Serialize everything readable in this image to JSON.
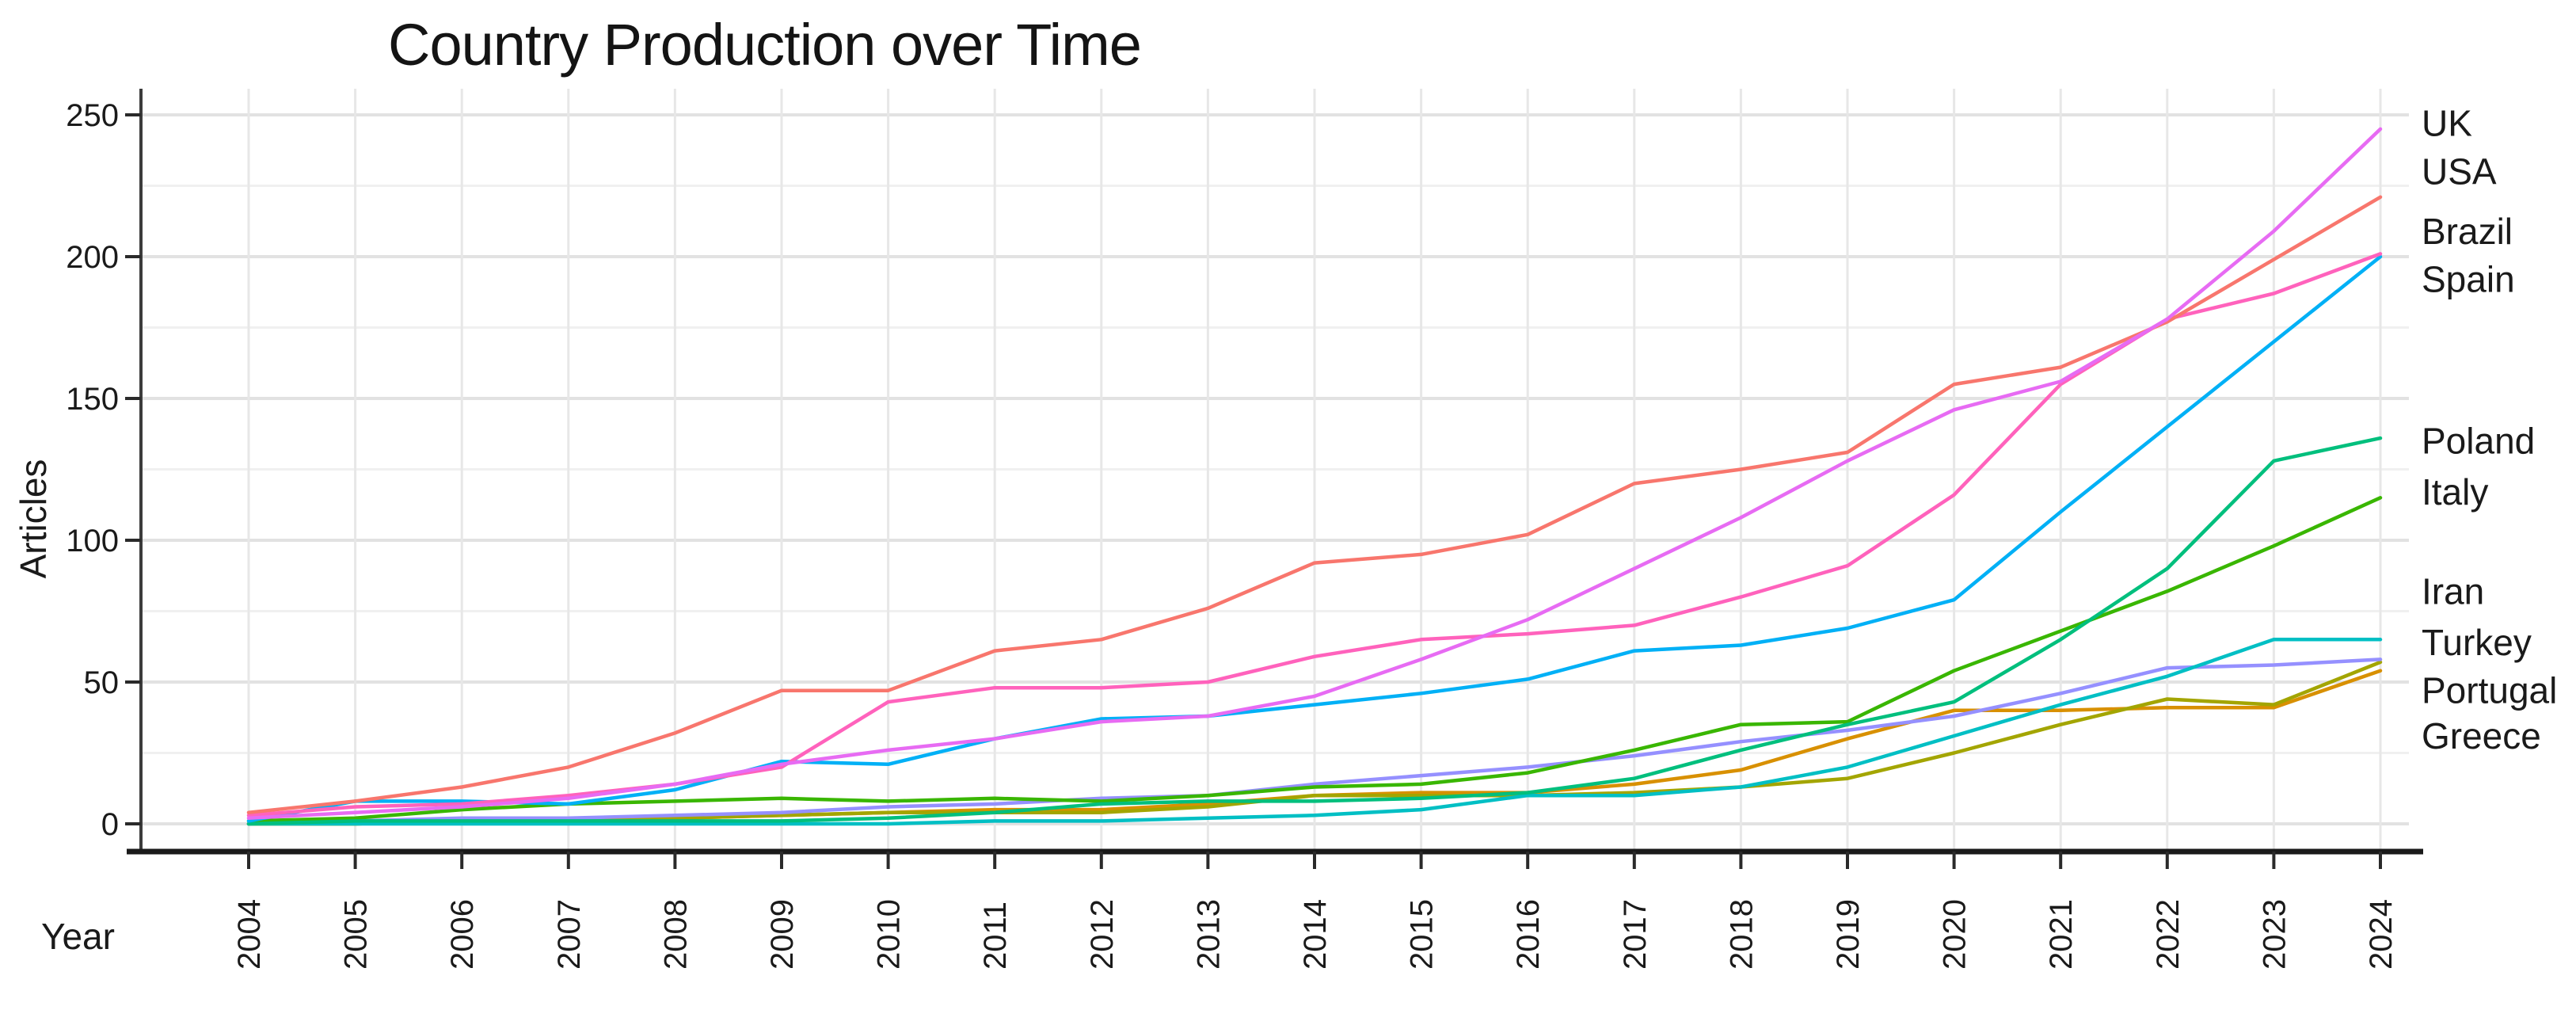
{
  "title": "Country Production over Time",
  "axes": {
    "x_label": "Year",
    "y_label": "Articles"
  },
  "chart_data": {
    "type": "line",
    "title": "Country Production over Time",
    "xlabel": "Year",
    "ylabel": "Articles",
    "x": [
      2004,
      2005,
      2006,
      2007,
      2008,
      2009,
      2010,
      2011,
      2012,
      2013,
      2014,
      2015,
      2016,
      2017,
      2018,
      2019,
      2020,
      2021,
      2022,
      2023,
      2024
    ],
    "ylim": [
      0,
      250
    ],
    "yticks": [
      0,
      50,
      100,
      150,
      200,
      250
    ],
    "grid": "horizontal lines every 25 (major every 50), vertical line each year, light gray on white",
    "legend_position": "direct labels at right edge of plot",
    "series": [
      {
        "name": "UK",
        "color": "#E76BF3",
        "label_y": 247,
        "values": [
          2,
          4,
          6,
          9,
          14,
          21,
          26,
          30,
          36,
          38,
          45,
          58,
          72,
          90,
          108,
          128,
          146,
          156,
          178,
          209,
          245
        ]
      },
      {
        "name": "USA",
        "color": "#F8766D",
        "label_y": 230,
        "values": [
          4,
          8,
          13,
          20,
          32,
          47,
          47,
          61,
          65,
          76,
          92,
          95,
          102,
          120,
          125,
          131,
          155,
          161,
          177,
          199,
          221
        ]
      },
      {
        "name": "Brazil",
        "color": "#FF62BC",
        "label_y": 209,
        "values": [
          3,
          6,
          7,
          10,
          14,
          20,
          43,
          48,
          48,
          50,
          59,
          65,
          67,
          70,
          80,
          91,
          116,
          155,
          178,
          187,
          201
        ]
      },
      {
        "name": "Spain",
        "color": "#00B0F6",
        "label_y": 192,
        "values": [
          1,
          8,
          8,
          7,
          12,
          22,
          21,
          30,
          37,
          38,
          42,
          46,
          51,
          61,
          63,
          69,
          79,
          110,
          140,
          170,
          200
        ]
      },
      {
        "name": "Poland",
        "color": "#00BF7D",
        "label_y": 135,
        "values": [
          0,
          1,
          1,
          1,
          1,
          1,
          2,
          4,
          7,
          8,
          8,
          9,
          11,
          16,
          26,
          35,
          43,
          65,
          90,
          128,
          136
        ]
      },
      {
        "name": "Italy",
        "color": "#39B600",
        "label_y": 117,
        "values": [
          1,
          2,
          5,
          7,
          8,
          9,
          8,
          9,
          8,
          10,
          13,
          14,
          18,
          26,
          35,
          36,
          54,
          68,
          82,
          98,
          115
        ]
      },
      {
        "name": "Iran",
        "color": "#00BFC4",
        "label_y": 82,
        "values": [
          0,
          0,
          0,
          0,
          0,
          0,
          0,
          1,
          1,
          2,
          3,
          5,
          10,
          10,
          13,
          20,
          31,
          42,
          52,
          65,
          65
        ]
      },
      {
        "name": "Turkey",
        "color": "#9590FF",
        "label_y": 64,
        "values": [
          0,
          1,
          2,
          2,
          3,
          4,
          6,
          7,
          9,
          10,
          14,
          17,
          20,
          24,
          29,
          33,
          38,
          46,
          55,
          56,
          58
        ]
      },
      {
        "name": "Portugal",
        "color": "#A3A500",
        "label_y": 47,
        "values": [
          0,
          0,
          1,
          1,
          2,
          3,
          4,
          4,
          4,
          6,
          10,
          10,
          10,
          11,
          13,
          16,
          25,
          35,
          44,
          42,
          57
        ]
      },
      {
        "name": "Greece",
        "color": "#D89000",
        "label_y": 31,
        "values": [
          0,
          0,
          1,
          1,
          2,
          3,
          4,
          5,
          5,
          7,
          10,
          11,
          11,
          14,
          19,
          30,
          40,
          40,
          41,
          41,
          54
        ]
      }
    ],
    "style": {
      "background": "#ffffff",
      "major_grid_color": "#e2e2e2",
      "minor_grid_color": "#f0f0f0",
      "vertical_grid_color": "#e7e7e7",
      "y_axis_color": "#3c3c3c",
      "x_axis_color": "#1a1a1a",
      "tick_color": "#2a2a2a",
      "text_color": "#1a1a1a",
      "line_width": 4.5
    }
  }
}
